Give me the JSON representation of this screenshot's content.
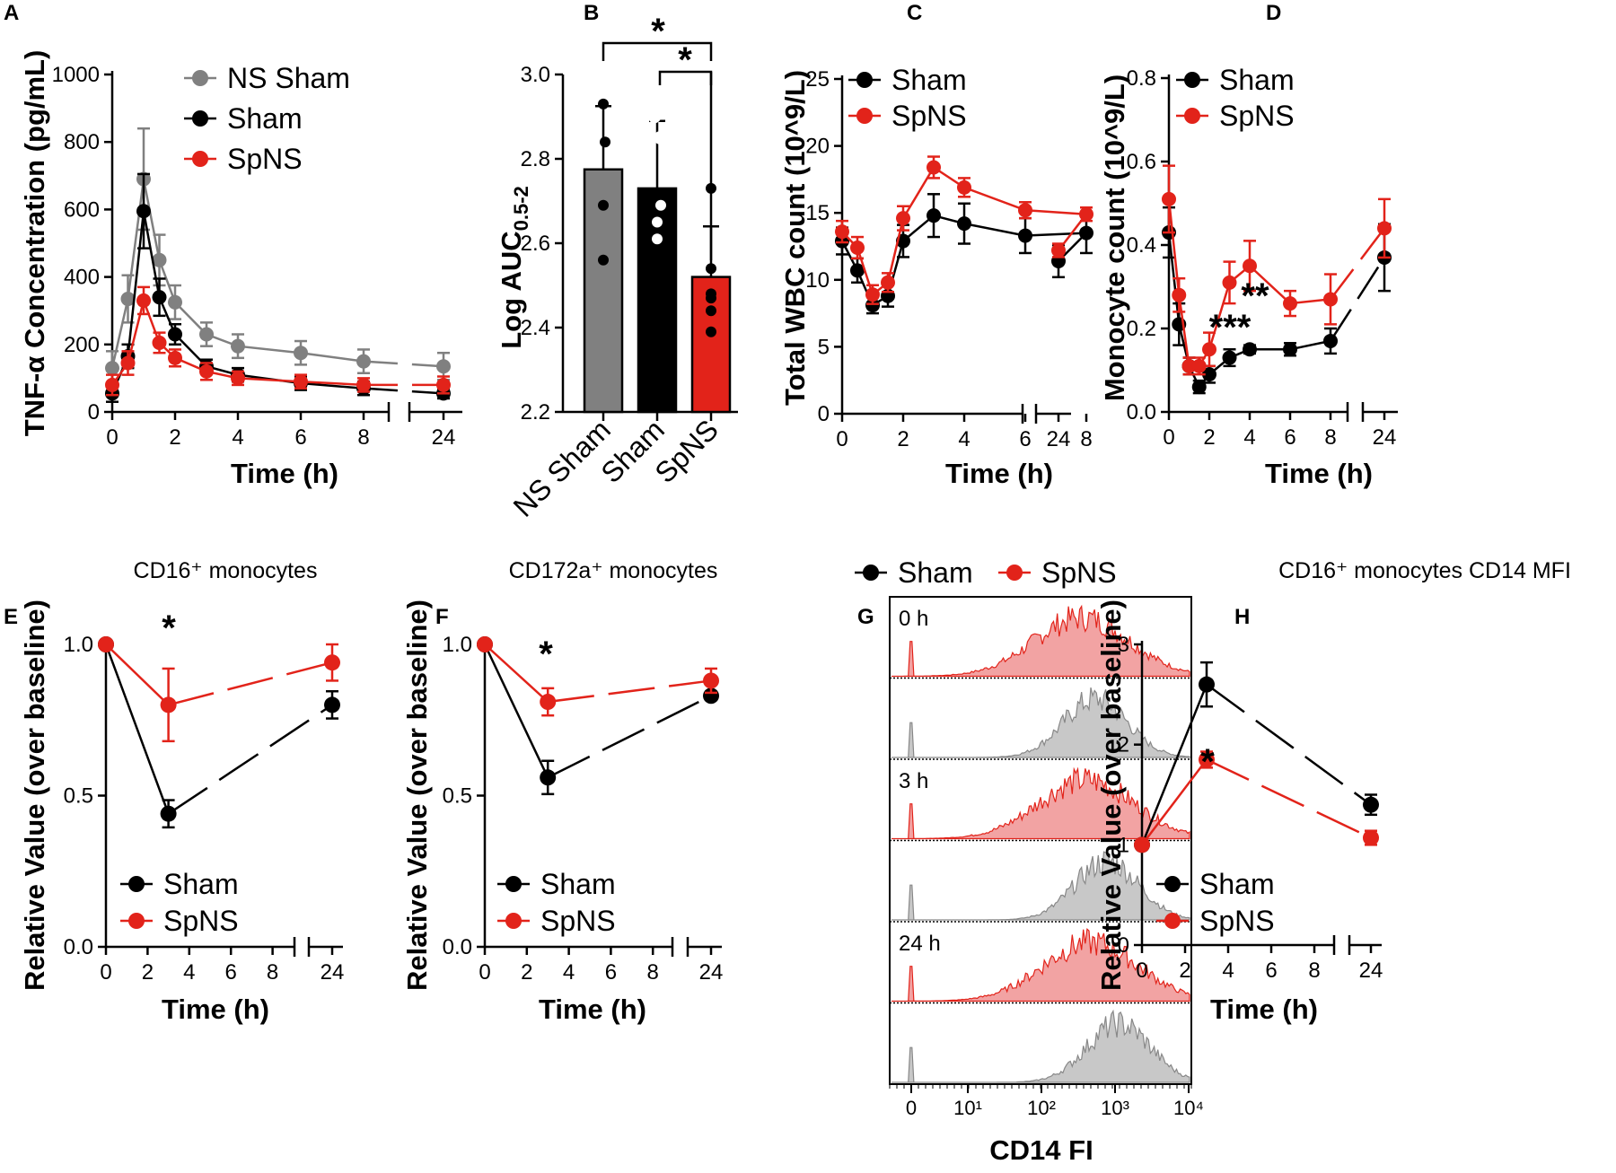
{
  "colors": {
    "gray": "#808080",
    "black": "#000000",
    "red": "#e2231a",
    "redFill": "#f2a3a3",
    "grayFill": "#c8c8c8"
  },
  "chart_data": [
    {
      "panel": "A",
      "type": "line",
      "ylabel": "TNF-α Concentration (pg/mL)",
      "xlabel": "Time (h)",
      "ylim": [
        0,
        1000
      ],
      "yticks": [
        "0",
        "200",
        "400",
        "600",
        "800",
        "1000"
      ],
      "xticks": [
        "0",
        "2",
        "4",
        "6",
        "8",
        "24"
      ],
      "series": [
        {
          "name": "NS Sham",
          "color": "gray",
          "x": [
            0,
            0.5,
            1,
            1.5,
            2,
            3,
            4,
            6,
            8,
            24
          ],
          "y": [
            130,
            335,
            690,
            450,
            325,
            230,
            195,
            175,
            150,
            135
          ],
          "err": [
            50,
            70,
            150,
            75,
            50,
            35,
            35,
            35,
            35,
            40
          ]
        },
        {
          "name": "Sham",
          "color": "black",
          "x": [
            0,
            0.5,
            1,
            1.5,
            2,
            3,
            4,
            6,
            8,
            24
          ],
          "y": [
            55,
            165,
            595,
            340,
            230,
            135,
            110,
            85,
            70,
            55
          ],
          "err": [
            25,
            35,
            110,
            55,
            30,
            20,
            20,
            20,
            20,
            15
          ]
        },
        {
          "name": "SpNS",
          "color": "red",
          "x": [
            0,
            0.5,
            1,
            1.5,
            2,
            3,
            4,
            6,
            8,
            24
          ],
          "y": [
            80,
            145,
            330,
            205,
            160,
            120,
            100,
            90,
            80,
            80
          ],
          "err": [
            30,
            35,
            40,
            30,
            25,
            25,
            20,
            20,
            20,
            25
          ]
        }
      ]
    },
    {
      "panel": "B",
      "type": "bar",
      "ylabel_main": "Log AUC",
      "ylabel_sub": "0.5-2",
      "ylim": [
        2.2,
        3.0
      ],
      "yticks": [
        "2.2",
        "2.4",
        "2.6",
        "2.8",
        "3.0"
      ],
      "categories": [
        "NS Sham",
        "Sham",
        "SpNS"
      ],
      "values": [
        2.775,
        2.73,
        2.52
      ],
      "err": [
        0.15,
        0.16,
        0.12
      ],
      "points": [
        [
          2.93,
          2.84,
          2.69,
          2.56
        ],
        [
          2.9,
          2.85,
          2.69,
          2.65,
          2.61
        ],
        [
          2.73,
          2.54,
          2.48,
          2.47,
          2.44,
          2.39
        ]
      ],
      "significance": [
        "*",
        "*"
      ]
    },
    {
      "panel": "C",
      "type": "line",
      "ylabel": "Total WBC count (10^9/L)",
      "xlabel": "Time (h)",
      "ylim": [
        0,
        25
      ],
      "yticks": [
        "0",
        "5",
        "10",
        "15",
        "20",
        "25"
      ],
      "xticks": [
        "0",
        "2",
        "4",
        "6",
        "8",
        "24"
      ],
      "series": [
        {
          "name": "Sham",
          "color": "black",
          "x": [
            0,
            0.5,
            1,
            1.5,
            2,
            3,
            4,
            6,
            8,
            24
          ],
          "y": [
            12.9,
            10.7,
            8.1,
            8.8,
            12.9,
            14.8,
            14.2,
            13.3,
            13.5,
            11.4
          ],
          "err": [
            1.0,
            0.9,
            0.6,
            0.8,
            1.2,
            1.6,
            1.5,
            1.3,
            1.5,
            1.2
          ]
        },
        {
          "name": "SpNS",
          "color": "red",
          "x": [
            0,
            0.5,
            1,
            1.5,
            2,
            3,
            4,
            6,
            8,
            24
          ],
          "y": [
            13.6,
            12.4,
            8.9,
            9.8,
            14.6,
            18.4,
            16.9,
            15.2,
            14.9,
            12.2
          ],
          "err": [
            0.8,
            0.8,
            0.7,
            0.7,
            0.9,
            0.8,
            0.7,
            0.6,
            0.5,
            0.5
          ]
        }
      ]
    },
    {
      "panel": "D",
      "type": "line",
      "ylabel": "Monocyte count (10^9/L)",
      "xlabel": "Time (h)",
      "ylim": [
        0,
        0.8
      ],
      "yticks": [
        "0.0",
        "0.2",
        "0.4",
        "0.6",
        "0.8"
      ],
      "xticks": [
        "0",
        "2",
        "4",
        "6",
        "8",
        "24"
      ],
      "annotations": [
        "***",
        "**"
      ],
      "series": [
        {
          "name": "Sham",
          "color": "black",
          "x": [
            0,
            0.5,
            1,
            1.5,
            2,
            3,
            4,
            6,
            8,
            24
          ],
          "y": [
            0.43,
            0.21,
            0.11,
            0.06,
            0.09,
            0.13,
            0.15,
            0.15,
            0.17,
            0.37
          ],
          "err": [
            0.06,
            0.05,
            0.02,
            0.015,
            0.02,
            0.02,
            0.01,
            0.015,
            0.03,
            0.08
          ]
        },
        {
          "name": "SpNS",
          "color": "red",
          "x": [
            0,
            0.5,
            1,
            1.5,
            2,
            3,
            4,
            6,
            8,
            24
          ],
          "y": [
            0.51,
            0.28,
            0.11,
            0.11,
            0.15,
            0.31,
            0.35,
            0.26,
            0.27,
            0.44
          ],
          "err": [
            0.08,
            0.04,
            0.02,
            0.02,
            0.04,
            0.05,
            0.06,
            0.03,
            0.06,
            0.07
          ]
        }
      ]
    },
    {
      "panel": "E",
      "type": "line",
      "title": "CD16⁺ monocytes",
      "ylabel": "Relative Value (over baseline)",
      "xlabel": "Time (h)",
      "ylim": [
        0,
        1.0
      ],
      "yticks": [
        "0.0",
        "0.5",
        "1.0"
      ],
      "xticks": [
        "0",
        "2",
        "4",
        "6",
        "8",
        "24"
      ],
      "annotations": [
        "*"
      ],
      "series": [
        {
          "name": "Sham",
          "color": "black",
          "x": [
            0,
            3,
            24
          ],
          "y": [
            1.0,
            0.44,
            0.8
          ],
          "err": [
            0,
            0.045,
            0.045
          ]
        },
        {
          "name": "SpNS",
          "color": "red",
          "x": [
            0,
            3,
            24
          ],
          "y": [
            1.0,
            0.8,
            0.94
          ],
          "err": [
            0,
            0.12,
            0.06
          ]
        }
      ]
    },
    {
      "panel": "F",
      "type": "line",
      "title": "CD172a⁺ monocytes",
      "ylabel": "Relative Value (over baseline)",
      "xlabel": "Time (h)",
      "ylim": [
        0,
        1.0
      ],
      "yticks": [
        "0.0",
        "0.5",
        "1.0"
      ],
      "xticks": [
        "0",
        "2",
        "4",
        "6",
        "8",
        "24"
      ],
      "annotations": [
        "*"
      ],
      "series": [
        {
          "name": "Sham",
          "color": "black",
          "x": [
            0,
            3,
            24
          ],
          "y": [
            1.0,
            0.56,
            0.83
          ],
          "err": [
            0,
            0.055,
            0.01
          ]
        },
        {
          "name": "SpNS",
          "color": "red",
          "x": [
            0,
            3,
            24
          ],
          "y": [
            1.0,
            0.81,
            0.88
          ],
          "err": [
            0,
            0.045,
            0.04
          ]
        }
      ]
    },
    {
      "panel": "G",
      "type": "histogram",
      "xlabel": "CD14 FI",
      "legend": [
        "Sham",
        "SpNS"
      ],
      "timepoints": [
        "0 h",
        "3 h",
        "24 h"
      ],
      "xticks": [
        "0",
        "10¹",
        "10²",
        "10³",
        "10⁴"
      ]
    },
    {
      "panel": "H",
      "type": "line",
      "title": "CD16⁺ monocytes CD14 MFI",
      "ylabel": "Relative Value (over baseline)",
      "xlabel": "Time (h)",
      "ylim": [
        0,
        3
      ],
      "yticks": [
        "0",
        "1",
        "2",
        "3"
      ],
      "xticks": [
        "0",
        "2",
        "4",
        "6",
        "8",
        "24"
      ],
      "annotations": [
        "*"
      ],
      "series": [
        {
          "name": "Sham",
          "color": "black",
          "x": [
            0,
            3,
            24
          ],
          "y": [
            1.0,
            2.6,
            1.4
          ],
          "err": [
            0,
            0.22,
            0.1
          ]
        },
        {
          "name": "SpNS",
          "color": "red",
          "x": [
            0,
            3,
            24
          ],
          "y": [
            1.0,
            1.85,
            1.07
          ],
          "err": [
            0,
            0.08,
            0.07
          ]
        }
      ]
    }
  ]
}
